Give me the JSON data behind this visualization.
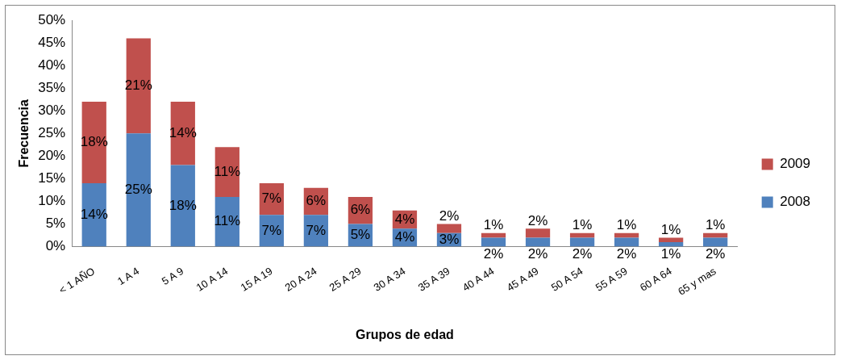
{
  "chart_data": {
    "type": "bar",
    "stacked": true,
    "xlabel": "Grupos de edad",
    "ylabel": "Frecuencia",
    "categories": [
      "< 1 AÑO",
      "1 A 4",
      "5 A 9",
      "10 A 14",
      "15 A 19",
      "20 A 24",
      "25 A 29",
      "30 A 34",
      "35 A 39",
      "40 A 44",
      "45 A 49",
      "50 A 54",
      "55 A 59",
      "60 A 64",
      "65 y mas"
    ],
    "series": [
      {
        "name": "2008",
        "color": "#4f81bd",
        "values": [
          14,
          25,
          18,
          11,
          7,
          7,
          5,
          4,
          3,
          2,
          2,
          2,
          2,
          1,
          2
        ],
        "value_labels": [
          "14%",
          "25%",
          "18%",
          "11%",
          "7%",
          "7%",
          "5%",
          "4%",
          "3%",
          "2%",
          "2%",
          "2%",
          "2%",
          "1%",
          "2%"
        ]
      },
      {
        "name": "2009",
        "color": "#c0504d",
        "values": [
          18,
          21,
          14,
          11,
          7,
          6,
          6,
          4,
          2,
          1,
          2,
          1,
          1,
          1,
          1
        ],
        "value_labels": [
          "18%",
          "21%",
          "14%",
          "11%",
          "7%",
          "6%",
          "6%",
          "4%",
          "2%",
          "1%",
          "2%",
          "1%",
          "1%",
          "1%",
          "1%"
        ]
      }
    ],
    "ylim": [
      0,
      50
    ],
    "yticks": [
      {
        "value": 0,
        "label": "0%"
      },
      {
        "value": 5,
        "label": "5%"
      },
      {
        "value": 10,
        "label": "10%"
      },
      {
        "value": 15,
        "label": "15%"
      },
      {
        "value": 20,
        "label": "20%"
      },
      {
        "value": 25,
        "label": "25%"
      },
      {
        "value": 30,
        "label": "30%"
      },
      {
        "value": 35,
        "label": "35%"
      },
      {
        "value": 40,
        "label": "40%"
      },
      {
        "value": 45,
        "label": "45%"
      },
      {
        "value": 50,
        "label": "50%"
      }
    ],
    "grid": false,
    "legend": "right"
  }
}
